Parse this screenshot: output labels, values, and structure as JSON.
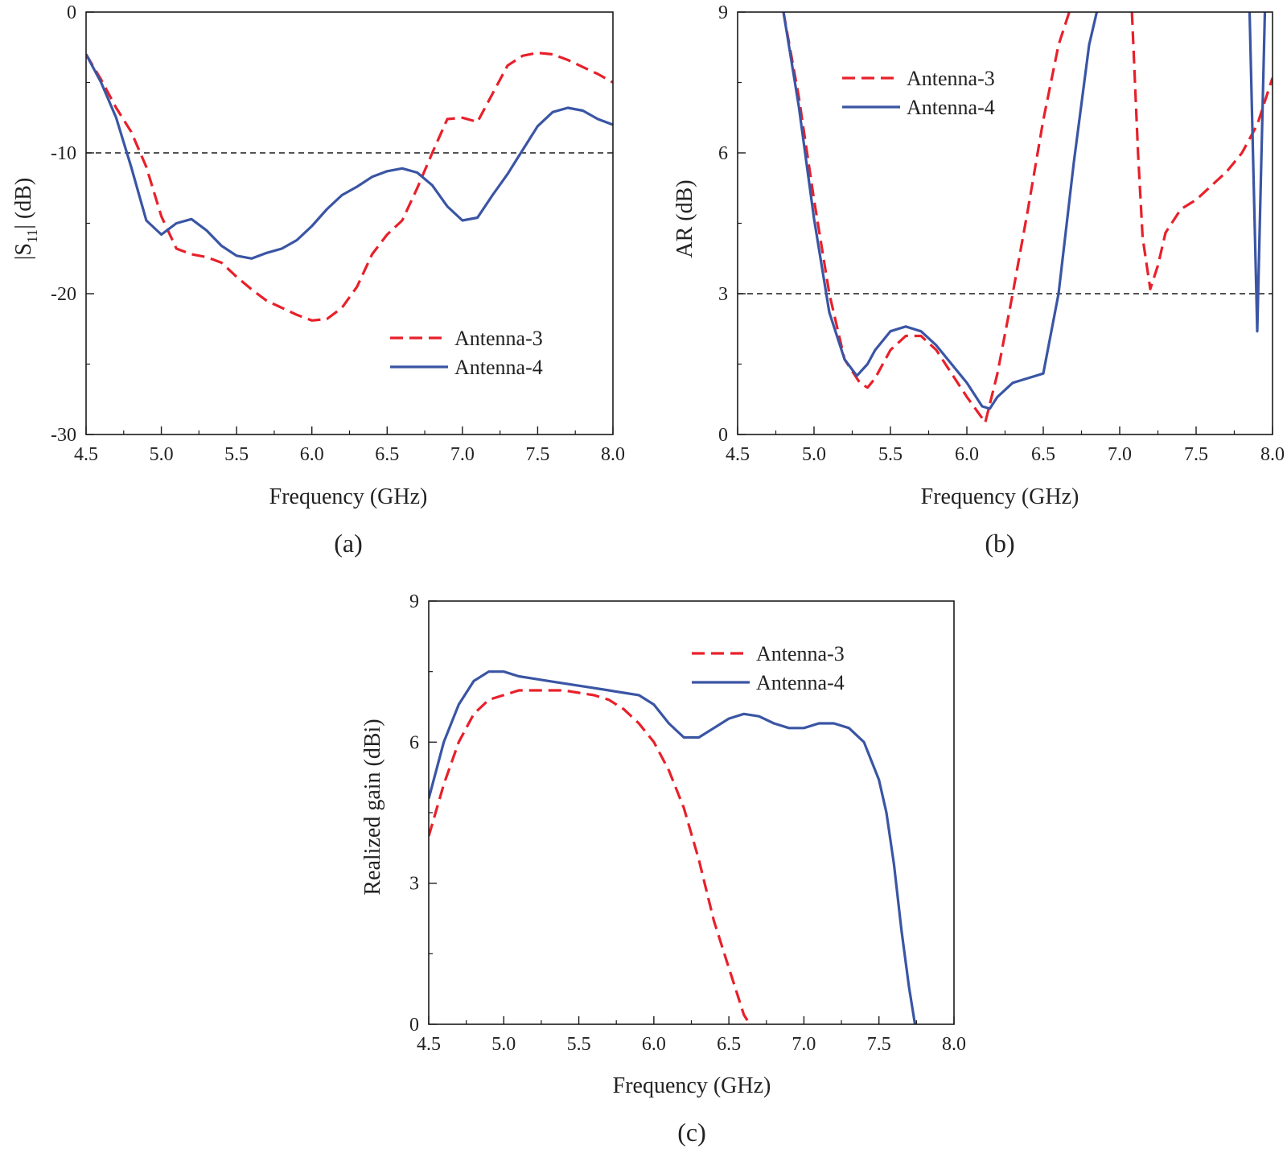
{
  "colors": {
    "antenna3": "#e8202a",
    "antenna4": "#3a55a4",
    "axis": "#1a1a1a",
    "reference": "#1a1a1a"
  },
  "chart_data": [
    {
      "id": "a",
      "type": "line",
      "panel_label": "(a)",
      "title": "",
      "xlabel": "Frequency (GHz)",
      "ylabel_main": "|S",
      "ylabel_sub": "11",
      "ylabel_tail": "| (dB)",
      "xlim": [
        4.5,
        8.0
      ],
      "ylim": [
        -30,
        0
      ],
      "xticks": [
        "4.5",
        "5.0",
        "5.5",
        "6.0",
        "6.5",
        "7.0",
        "7.5",
        "8.0"
      ],
      "yticks": [
        "-30",
        "-20",
        "-10",
        "0"
      ],
      "reference_line": -10,
      "legend_position": "right-middle",
      "series": [
        {
          "name": "Antenna-3",
          "style": "dashed",
          "x": [
            4.5,
            4.6,
            4.7,
            4.8,
            4.9,
            5.0,
            5.1,
            5.2,
            5.3,
            5.4,
            5.5,
            5.6,
            5.7,
            5.8,
            5.9,
            6.0,
            6.1,
            6.2,
            6.3,
            6.4,
            6.5,
            6.6,
            6.7,
            6.8,
            6.9,
            7.0,
            7.1,
            7.2,
            7.3,
            7.4,
            7.5,
            7.6,
            7.7,
            7.8,
            7.9,
            8.0
          ],
          "y": [
            -3.0,
            -4.8,
            -6.8,
            -8.5,
            -11.0,
            -14.5,
            -16.8,
            -17.2,
            -17.4,
            -17.8,
            -18.8,
            -19.7,
            -20.5,
            -21.0,
            -21.5,
            -21.9,
            -21.8,
            -21.0,
            -19.5,
            -17.2,
            -15.8,
            -14.8,
            -12.5,
            -10.0,
            -7.6,
            -7.5,
            -7.8,
            -5.8,
            -3.8,
            -3.1,
            -2.9,
            -3.0,
            -3.4,
            -3.9,
            -4.4,
            -5.0
          ]
        },
        {
          "name": "Antenna-4",
          "style": "solid",
          "x": [
            4.5,
            4.6,
            4.7,
            4.8,
            4.9,
            5.0,
            5.1,
            5.2,
            5.3,
            5.4,
            5.5,
            5.6,
            5.7,
            5.8,
            5.9,
            6.0,
            6.1,
            6.2,
            6.3,
            6.4,
            6.5,
            6.6,
            6.7,
            6.8,
            6.9,
            7.0,
            7.1,
            7.2,
            7.3,
            7.4,
            7.5,
            7.6,
            7.7,
            7.8,
            7.9,
            8.0
          ],
          "y": [
            -3.0,
            -5.0,
            -7.5,
            -11.0,
            -14.8,
            -15.8,
            -15.0,
            -14.7,
            -15.5,
            -16.6,
            -17.3,
            -17.5,
            -17.1,
            -16.8,
            -16.2,
            -15.2,
            -14.0,
            -13.0,
            -12.4,
            -11.7,
            -11.3,
            -11.1,
            -11.4,
            -12.3,
            -13.8,
            -14.8,
            -14.6,
            -13.0,
            -11.5,
            -9.8,
            -8.1,
            -7.1,
            -6.8,
            -7.0,
            -7.6,
            -8.0
          ]
        }
      ]
    },
    {
      "id": "b",
      "type": "line",
      "panel_label": "(b)",
      "title": "",
      "xlabel": "Frequency (GHz)",
      "ylabel": "AR (dB)",
      "xlim": [
        4.5,
        8.0
      ],
      "ylim": [
        0,
        9
      ],
      "xticks": [
        "4.5",
        "5.0",
        "5.5",
        "6.0",
        "6.5",
        "7.0",
        "7.5",
        "8.0"
      ],
      "yticks": [
        "0",
        "3",
        "6",
        "9"
      ],
      "reference_line": 3,
      "legend_position": "top-left",
      "series": [
        {
          "name": "Antenna-3",
          "style": "dashed",
          "x": [
            4.8,
            4.9,
            5.0,
            5.1,
            5.2,
            5.3,
            5.35,
            5.4,
            5.5,
            5.6,
            5.7,
            5.8,
            5.9,
            6.0,
            6.1,
            6.12,
            6.2,
            6.3,
            6.4,
            6.5,
            6.6,
            6.67,
            null,
            7.08,
            7.12,
            7.15,
            7.2,
            7.25,
            7.3,
            7.4,
            7.5,
            7.6,
            7.7,
            7.8,
            7.9,
            8.0
          ],
          "y": [
            9.0,
            7.2,
            5.0,
            3.0,
            1.6,
            1.1,
            1.0,
            1.2,
            1.8,
            2.1,
            2.1,
            1.8,
            1.3,
            0.8,
            0.35,
            0.25,
            1.3,
            3.0,
            4.8,
            6.7,
            8.3,
            9.0,
            null,
            9.0,
            6.0,
            4.2,
            3.1,
            3.6,
            4.3,
            4.8,
            5.0,
            5.3,
            5.6,
            6.0,
            6.6,
            7.6
          ]
        },
        {
          "name": "Antenna-4",
          "style": "solid",
          "x": [
            4.8,
            4.9,
            5.0,
            5.1,
            5.2,
            5.28,
            5.35,
            5.4,
            5.5,
            5.6,
            5.7,
            5.8,
            5.9,
            6.0,
            6.1,
            6.15,
            6.2,
            6.3,
            6.4,
            6.5,
            6.6,
            6.7,
            6.8,
            6.85,
            null,
            7.85,
            7.9,
            7.95
          ],
          "y": [
            9.0,
            7.0,
            4.6,
            2.6,
            1.6,
            1.25,
            1.5,
            1.8,
            2.2,
            2.3,
            2.2,
            1.9,
            1.5,
            1.1,
            0.6,
            0.55,
            0.8,
            1.1,
            1.2,
            1.3,
            3.0,
            5.8,
            8.3,
            9.0,
            null,
            9.0,
            2.2,
            9.0
          ]
        }
      ]
    },
    {
      "id": "c",
      "type": "line",
      "panel_label": "(c)",
      "title": "",
      "xlabel": "Frequency (GHz)",
      "ylabel": "Realized gain (dBi)",
      "xlim": [
        4.5,
        8.0
      ],
      "ylim": [
        0,
        9
      ],
      "xticks": [
        "4.5",
        "5.0",
        "5.5",
        "6.0",
        "6.5",
        "7.0",
        "7.5",
        "8.0"
      ],
      "yticks": [
        "0",
        "3",
        "6",
        "9"
      ],
      "reference_line": null,
      "legend_position": "top-right",
      "series": [
        {
          "name": "Antenna-3",
          "style": "dashed",
          "x": [
            4.5,
            4.6,
            4.7,
            4.8,
            4.9,
            5.0,
            5.1,
            5.2,
            5.3,
            5.4,
            5.5,
            5.6,
            5.7,
            5.8,
            5.9,
            6.0,
            6.1,
            6.2,
            6.3,
            6.4,
            6.5,
            6.55,
            6.6,
            6.64
          ],
          "y": [
            4.0,
            5.1,
            6.0,
            6.6,
            6.9,
            7.0,
            7.1,
            7.1,
            7.1,
            7.1,
            7.05,
            7.0,
            6.9,
            6.7,
            6.4,
            6.0,
            5.4,
            4.6,
            3.5,
            2.2,
            1.2,
            0.7,
            0.2,
            0.0
          ]
        },
        {
          "name": "Antenna-4",
          "style": "solid",
          "x": [
            4.5,
            4.6,
            4.7,
            4.8,
            4.9,
            5.0,
            5.1,
            5.2,
            5.3,
            5.4,
            5.5,
            5.6,
            5.7,
            5.8,
            5.9,
            6.0,
            6.1,
            6.2,
            6.3,
            6.4,
            6.5,
            6.6,
            6.7,
            6.8,
            6.9,
            7.0,
            7.1,
            7.2,
            7.3,
            7.4,
            7.5,
            7.55,
            7.6,
            7.65,
            7.7,
            7.74
          ],
          "y": [
            4.8,
            6.0,
            6.8,
            7.3,
            7.5,
            7.5,
            7.4,
            7.35,
            7.3,
            7.25,
            7.2,
            7.15,
            7.1,
            7.05,
            7.0,
            6.8,
            6.4,
            6.1,
            6.1,
            6.3,
            6.5,
            6.6,
            6.55,
            6.4,
            6.3,
            6.3,
            6.4,
            6.4,
            6.3,
            6.0,
            5.2,
            4.5,
            3.4,
            2.0,
            0.8,
            0.0
          ]
        }
      ]
    }
  ]
}
